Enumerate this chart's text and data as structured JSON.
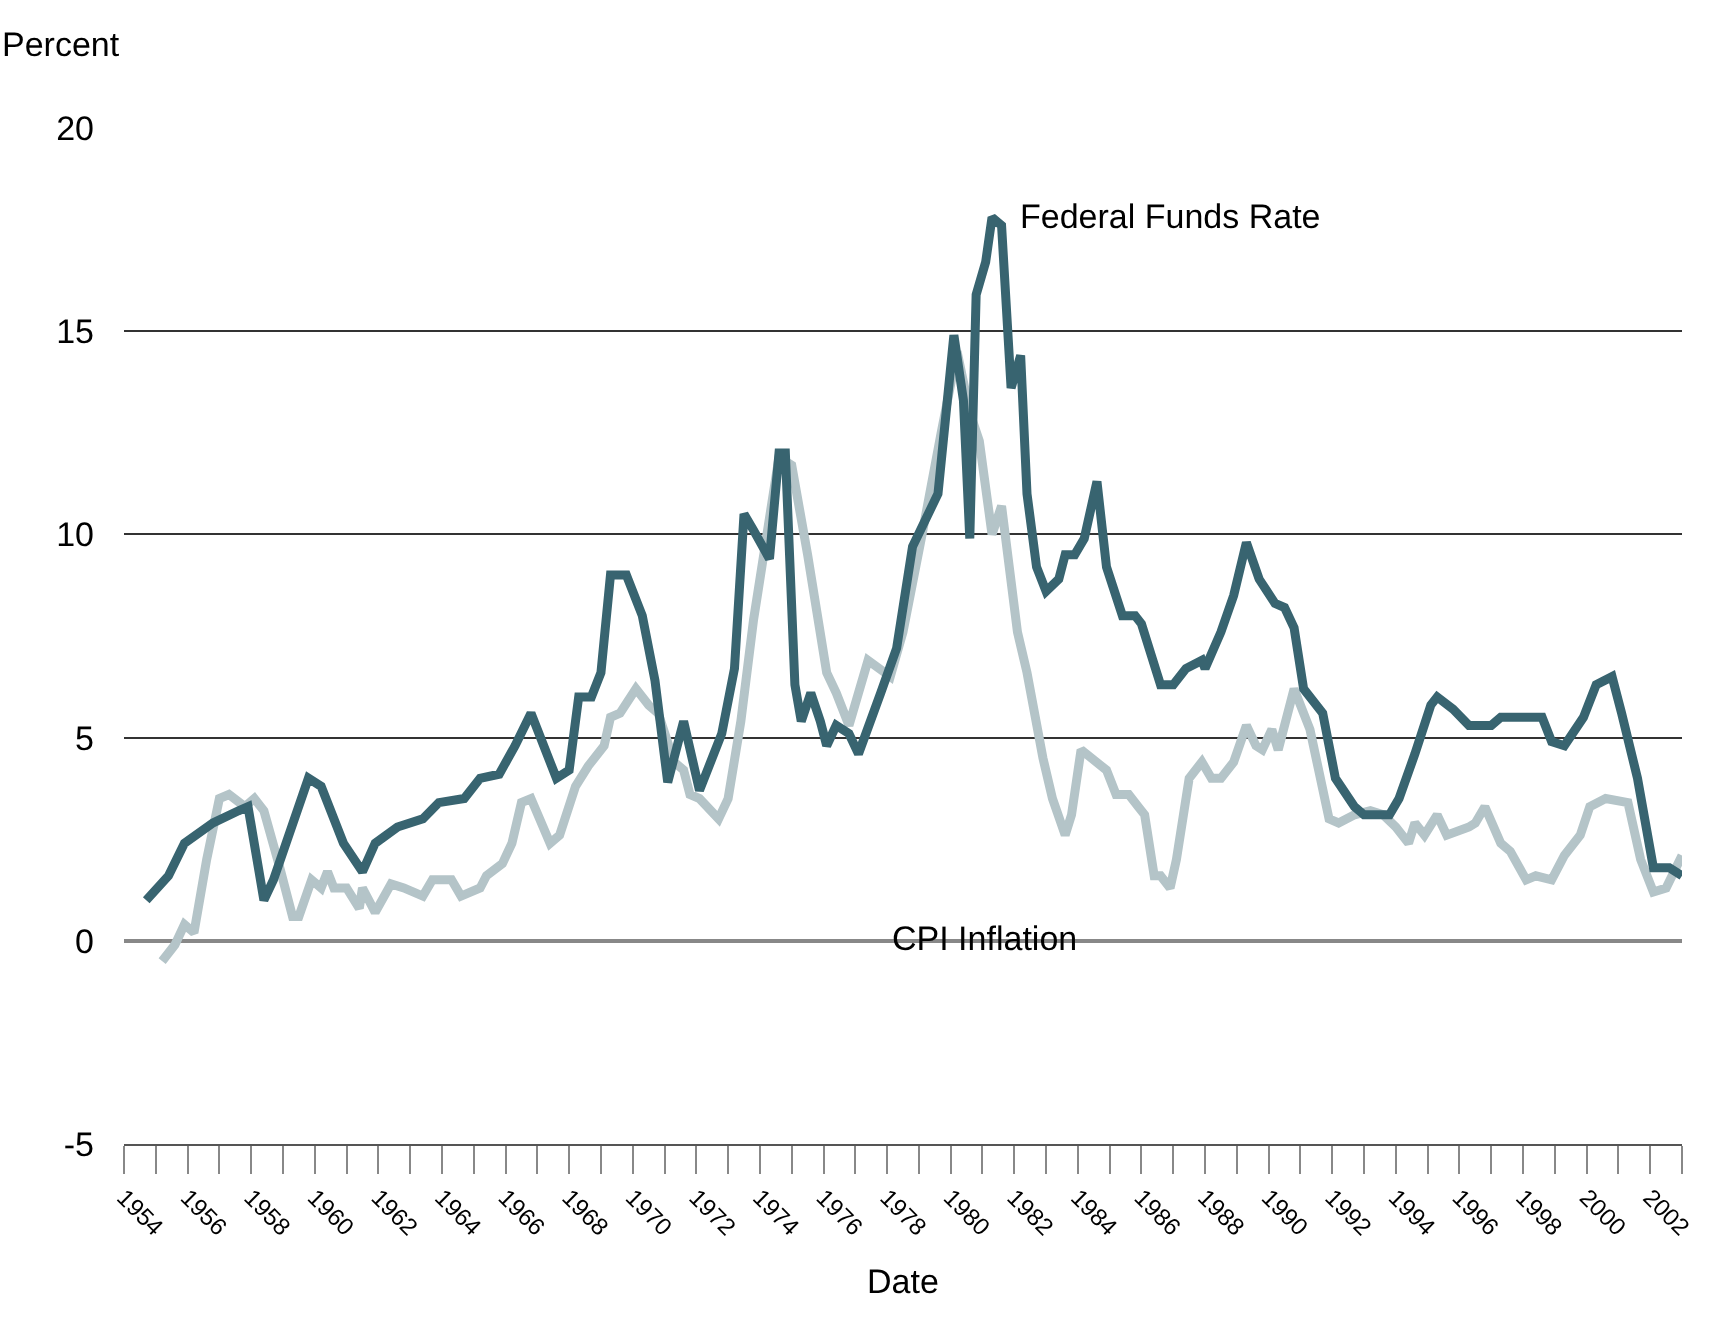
{
  "chart_data": {
    "type": "line",
    "ylabel": "Percent",
    "xlabel": "Date",
    "xlim": [
      1954,
      2003
    ],
    "ylim": [
      -5,
      20
    ],
    "yticks": [
      -5,
      0,
      5,
      10,
      15,
      20
    ],
    "xticks": [
      1954,
      {
        "value": 1955,
        "label": null
      },
      1956,
      {
        "value": 1957,
        "label": null
      },
      1958,
      {
        "value": 1959,
        "label": null
      },
      1960,
      {
        "value": 1961,
        "label": null
      },
      1962,
      {
        "value": 1963,
        "label": null
      },
      1964,
      {
        "value": 1965,
        "label": null
      },
      1966,
      {
        "value": 1967,
        "label": null
      },
      1968,
      {
        "value": 1969,
        "label": null
      },
      1970,
      {
        "value": 1971,
        "label": null
      },
      1972,
      {
        "value": 1973,
        "label": null
      },
      1974,
      {
        "value": 1975,
        "label": null
      },
      1976,
      {
        "value": 1977,
        "label": null
      },
      1978,
      {
        "value": 1979,
        "label": null
      },
      1980,
      {
        "value": 1981,
        "label": null
      },
      1982,
      {
        "value": 1983,
        "label": null
      },
      1984,
      {
        "value": 1985,
        "label": null
      },
      1986,
      {
        "value": 1987,
        "label": null
      },
      1988,
      {
        "value": 1989,
        "label": null
      },
      1990,
      {
        "value": 1991,
        "label": null
      },
      1992,
      {
        "value": 1993,
        "label": null
      },
      1994,
      {
        "value": 1995,
        "label": null
      },
      1996,
      {
        "value": 1997,
        "label": null
      },
      1998,
      {
        "value": 1999,
        "label": null
      },
      2000,
      {
        "value": 2001,
        "label": null
      },
      2002,
      {
        "value": 2003,
        "label": null
      }
    ],
    "grid": "y",
    "legend": false,
    "marker": "none",
    "line_style": "solid",
    "series": [
      {
        "name": "CPI Inflation",
        "color": "#b4c4c8",
        "x": [
          1955.2,
          1955.6,
          1955.9,
          1956.2,
          1956.6,
          1957.0,
          1957.3,
          1957.8,
          1958.1,
          1958.4,
          1958.9,
          1959.3,
          1959.5,
          1959.9,
          1960.2,
          1960.4,
          1960.6,
          1961.0,
          1961.4,
          1961.5,
          1961.9,
          1962.4,
          1962.8,
          1963.4,
          1963.7,
          1964.3,
          1964.6,
          1965.2,
          1965.4,
          1965.9,
          1966.2,
          1966.5,
          1966.8,
          1967.4,
          1967.7,
          1968.2,
          1968.6,
          1969.1,
          1969.3,
          1969.6,
          1970.1,
          1970.5,
          1970.8,
          1971.3,
          1971.6,
          1971.8,
          1972.1,
          1972.7,
          1973.0,
          1973.4,
          1973.8,
          1974.3,
          1974.6,
          1975.0,
          1975.5,
          1976.1,
          1976.4,
          1976.8,
          1977.4,
          1978.1,
          1978.5,
          1979.1,
          1979.7,
          1980.2,
          1980.6,
          1980.9,
          1981.3,
          1981.6,
          1982.1,
          1982.4,
          1982.9,
          1983.2,
          1983.6,
          1983.8,
          1984.1,
          1984.9,
          1985.2,
          1985.6,
          1985.9,
          1986.1,
          1986.4,
          1986.6,
          1986.9,
          1987.1,
          1987.5,
          1987.9,
          1988.2,
          1988.5,
          1988.9,
          1989.3,
          1989.6,
          1989.8,
          1990.1,
          1990.3,
          1990.8,
          1991.3,
          1991.6,
          1991.9,
          1992.2,
          1992.7,
          1993.2,
          1993.6,
          1994.0,
          1994.4,
          1994.6,
          1994.9,
          1995.3,
          1995.6,
          1996.3,
          1996.5,
          1996.8,
          1997.3,
          1997.6,
          1998.1,
          1998.4,
          1998.9,
          1999.3,
          1999.8,
          2000.1,
          2000.6,
          2001.3,
          2001.7,
          2002.1,
          2002.5,
          2003.0
        ],
        "values": [
          -0.5,
          -0.1,
          0.4,
          0.2,
          2.0,
          3.5,
          3.6,
          3.3,
          3.5,
          3.2,
          1.8,
          0.6,
          0.6,
          1.5,
          1.3,
          1.7,
          1.3,
          1.3,
          0.8,
          1.3,
          0.7,
          1.4,
          1.3,
          1.1,
          1.5,
          1.5,
          1.1,
          1.3,
          1.6,
          1.9,
          2.4,
          3.4,
          3.5,
          2.4,
          2.6,
          3.8,
          4.3,
          4.8,
          5.5,
          5.6,
          6.2,
          5.8,
          5.6,
          4.4,
          4.2,
          3.6,
          3.5,
          3.0,
          3.5,
          5.4,
          7.9,
          10.4,
          11.9,
          11.7,
          9.5,
          6.6,
          6.1,
          5.3,
          6.9,
          6.5,
          7.6,
          10.0,
          12.5,
          14.5,
          13.0,
          12.3,
          10.0,
          10.7,
          7.6,
          6.6,
          4.5,
          3.5,
          2.6,
          3.1,
          4.7,
          4.2,
          3.6,
          3.6,
          3.3,
          3.1,
          1.6,
          1.6,
          1.3,
          2.0,
          4.0,
          4.4,
          4.0,
          4.0,
          4.4,
          5.3,
          4.8,
          4.7,
          5.2,
          4.7,
          6.2,
          5.2,
          4.1,
          3.0,
          2.9,
          3.1,
          3.2,
          3.1,
          2.8,
          2.4,
          2.9,
          2.6,
          3.1,
          2.6,
          2.8,
          2.9,
          3.3,
          2.4,
          2.2,
          1.5,
          1.6,
          1.5,
          2.1,
          2.6,
          3.3,
          3.5,
          3.4,
          2.0,
          1.2,
          1.3,
          2.1
        ]
      },
      {
        "name": "Federal Funds Rate",
        "color": "#386470",
        "x": [
          1954.7,
          1955.4,
          1955.9,
          1956.8,
          1957.6,
          1957.9,
          1958.4,
          1958.7,
          1959.8,
          1960.2,
          1960.9,
          1961.5,
          1961.9,
          1962.6,
          1963.4,
          1963.9,
          1964.7,
          1965.2,
          1965.8,
          1966.3,
          1966.8,
          1967.6,
          1968.0,
          1968.3,
          1968.7,
          1969.0,
          1969.3,
          1969.8,
          1970.3,
          1970.7,
          1971.1,
          1971.6,
          1972.1,
          1972.8,
          1973.2,
          1973.5,
          1973.8,
          1974.3,
          1974.6,
          1974.8,
          1975.1,
          1975.3,
          1975.6,
          1975.9,
          1976.1,
          1976.4,
          1976.8,
          1977.1,
          1977.8,
          1978.3,
          1978.8,
          1979.6,
          1980.1,
          1980.4,
          1980.6,
          1980.8,
          1981.1,
          1981.3,
          1981.6,
          1981.9,
          1982.2,
          1982.4,
          1982.7,
          1983.0,
          1983.4,
          1983.6,
          1983.9,
          1984.2,
          1984.6,
          1984.9,
          1985.4,
          1985.8,
          1986.0,
          1986.6,
          1987.0,
          1987.4,
          1987.9,
          1988.0,
          1988.5,
          1988.9,
          1989.3,
          1989.7,
          1990.2,
          1990.5,
          1990.8,
          1991.1,
          1991.7,
          1992.1,
          1992.7,
          1993.0,
          1993.8,
          1994.1,
          1994.6,
          1995.1,
          1995.3,
          1995.8,
          1996.3,
          1997.0,
          1997.3,
          1998.6,
          1998.9,
          1999.3,
          1999.9,
          2000.3,
          2000.8,
          2001.1,
          2001.6,
          2002.1,
          2002.6,
          2003.0
        ],
        "values": [
          1.0,
          1.6,
          2.4,
          2.9,
          3.2,
          3.3,
          1.0,
          1.5,
          4.0,
          3.8,
          2.4,
          1.7,
          2.4,
          2.8,
          3.0,
          3.4,
          3.5,
          4.0,
          4.1,
          4.8,
          5.6,
          4.0,
          4.2,
          6.0,
          6.0,
          6.6,
          9.0,
          9.0,
          8.0,
          6.4,
          3.9,
          5.4,
          3.7,
          5.1,
          6.7,
          10.5,
          10.1,
          9.4,
          12.0,
          12.0,
          6.3,
          5.4,
          6.1,
          5.4,
          4.8,
          5.3,
          5.1,
          4.6,
          6.1,
          7.2,
          9.7,
          11.0,
          14.9,
          13.3,
          9.9,
          15.9,
          16.7,
          17.8,
          17.6,
          13.6,
          14.4,
          11.0,
          9.2,
          8.6,
          8.9,
          9.5,
          9.5,
          9.9,
          11.3,
          9.2,
          8.0,
          8.0,
          7.8,
          6.3,
          6.3,
          6.7,
          6.9,
          6.7,
          7.6,
          8.5,
          9.8,
          8.9,
          8.3,
          8.2,
          7.7,
          6.2,
          5.6,
          4.0,
          3.3,
          3.1,
          3.1,
          3.5,
          4.6,
          5.8,
          6.0,
          5.7,
          5.3,
          5.3,
          5.5,
          5.5,
          4.9,
          4.8,
          5.5,
          6.3,
          6.5,
          5.6,
          4.0,
          1.8,
          1.8,
          1.6
        ]
      }
    ]
  }
}
